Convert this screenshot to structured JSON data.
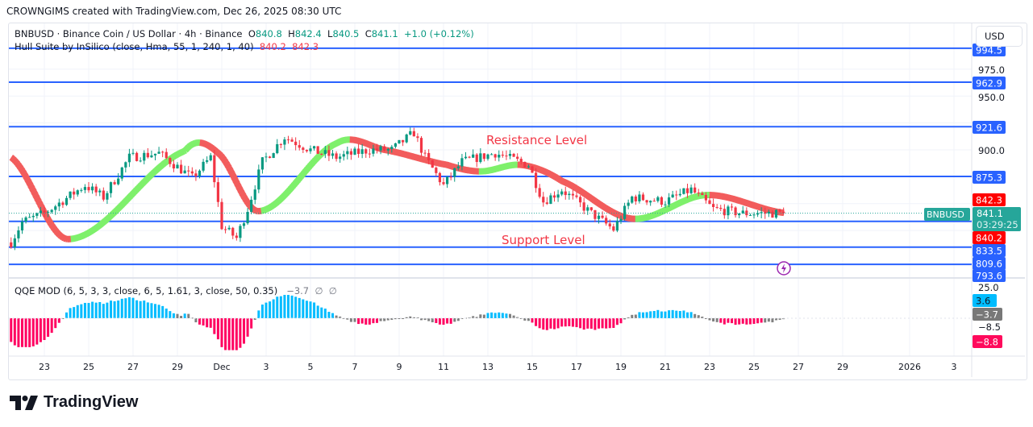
{
  "credit": "CROWNGIMS created with TradingView.com, Dec 26, 2025 08:30 UTC",
  "symbol_legend": {
    "title": "BNBUSD · Binance Coin / US Dollar · 4h · Binance",
    "o_label": "O",
    "o": "840.8",
    "h_label": "H",
    "h": "842.4",
    "l_label": "L",
    "l": "840.5",
    "c_label": "C",
    "c": "841.1",
    "change": "+1.0 (+0.12%)"
  },
  "hull_legend": {
    "title": "Hull Suite by InSilico (close, Hma, 55, 1, 240, 1, 40)",
    "v1": "840.2",
    "v2": "842.3"
  },
  "qqe_legend": {
    "title": "QQE MOD (6, 5, 3, 3, close, 6, 5, 1.61, 3, close, 50, 0.35)",
    "v1": "−3.7",
    "v2": "∅",
    "v3": "∅"
  },
  "currency_button": "USD",
  "annotations": {
    "resistance": "Resistance Level",
    "support": "Support Level"
  },
  "logo_text": "TradingView",
  "colors": {
    "up": "#089981",
    "down": "#f23645",
    "hull_up": "#7ef06b",
    "hull_down": "#f25c5c",
    "level_line": "#2962ff",
    "qqe_pos": "#00bcff",
    "qqe_neg": "#ff0060",
    "qqe_neutral": "#808080"
  },
  "chart_data": {
    "type": "candlestick",
    "timeframe": "4h",
    "ylim": [
      790,
      1000
    ],
    "price_ticks": [
      "975.0",
      "950.0",
      "900.0"
    ],
    "x_ticks": [
      "23",
      "25",
      "27",
      "29",
      "Dec",
      "3",
      "5",
      "7",
      "9",
      "11",
      "13",
      "15",
      "17",
      "19",
      "21",
      "23",
      "25",
      "27",
      "29",
      "2026",
      "3"
    ],
    "close_path": [
      [
        "2025-11-21T12:00",
        814
      ],
      [
        "2025-11-22T00:00",
        833
      ],
      [
        "2025-11-23T00:00",
        841
      ],
      [
        "2025-11-24T20:00",
        867
      ],
      [
        "2025-11-25T16:00",
        856
      ],
      [
        "2025-11-26T20:00",
        893
      ],
      [
        "2025-11-28T04:00",
        897
      ],
      [
        "2025-11-29T16:00",
        874
      ],
      [
        "2025-11-30T12:00",
        893
      ],
      [
        "2025-12-01T00:00",
        829
      ],
      [
        "2025-12-01T16:00",
        818
      ],
      [
        "2025-12-02T04:00",
        845
      ],
      [
        "2025-12-02T20:00",
        889
      ],
      [
        "2025-12-03T20:00",
        912
      ],
      [
        "2025-12-05T00:00",
        900
      ],
      [
        "2025-12-06T04:00",
        893
      ],
      [
        "2025-12-07T16:00",
        900
      ],
      [
        "2025-12-08T16:00",
        900
      ],
      [
        "2025-12-09T16:00",
        916
      ],
      [
        "2025-12-10T04:00",
        893
      ],
      [
        "2025-12-11T00:00",
        867
      ],
      [
        "2025-12-11T20:00",
        889
      ],
      [
        "2025-12-13T08:00",
        897
      ],
      [
        "2025-12-14T20:00",
        886
      ],
      [
        "2025-12-15T12:00",
        852
      ],
      [
        "2025-12-16T08:00",
        863
      ],
      [
        "2025-12-17T16:00",
        841
      ],
      [
        "2025-12-18T16:00",
        826
      ],
      [
        "2025-12-19T12:00",
        856
      ],
      [
        "2025-12-21T00:00",
        852
      ],
      [
        "2025-12-22T04:00",
        863
      ],
      [
        "2025-12-23T04:00",
        845
      ],
      [
        "2025-12-24T12:00",
        841
      ],
      [
        "2025-12-26T08:00",
        841.1
      ]
    ],
    "hull": [
      [
        "2025-11-21T12:00",
        893
      ],
      [
        "2025-11-24T02:00",
        817
      ],
      [
        "2025-11-29T08:00",
        899
      ],
      [
        "2025-11-30T20:00",
        897
      ],
      [
        "2025-12-02T16:00",
        843
      ],
      [
        "2025-12-06T04:00",
        906
      ],
      [
        "2025-12-08T08:00",
        900
      ],
      [
        "2025-12-11T04:00",
        886
      ],
      [
        "2025-12-12T16:00",
        880
      ],
      [
        "2025-12-14T12:00",
        886
      ],
      [
        "2025-12-16T08:00",
        871
      ],
      [
        "2025-12-19T12:00",
        836
      ],
      [
        "2025-12-22T20:00",
        858
      ],
      [
        "2025-12-26T08:00",
        841.5
      ]
    ],
    "horizontal_levels": [
      994.5,
      962.9,
      921.6,
      875.3,
      833.5,
      809.6,
      793.6
    ],
    "level_labels": [
      "994.5",
      "962.9",
      "921.6",
      "875.3",
      "833.5",
      "809.6",
      "793.6"
    ],
    "price_tags": {
      "symbol": "BNBUSD",
      "last": "841.1",
      "countdown": "03:29:25",
      "hull_upper": "842.3",
      "hull_lower": "840.2"
    },
    "qqe_scale": {
      "ticks": [
        "25.0",
        "−8.5"
      ],
      "tags": [
        "3.6",
        "−3.7",
        "−8.8"
      ]
    }
  }
}
